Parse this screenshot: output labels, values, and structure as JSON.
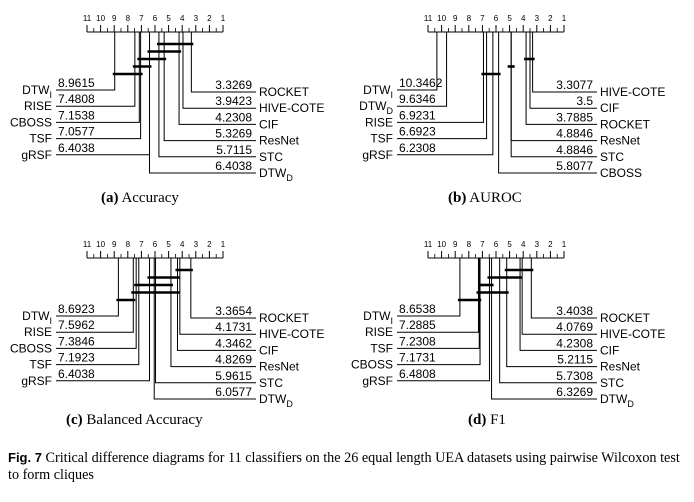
{
  "panels": [
    {
      "letter": "(a)",
      "metric": "Accuracy",
      "scale": [
        "11",
        "10",
        "9",
        "8",
        "7",
        "6",
        "5",
        "4",
        "3",
        "2",
        "1"
      ],
      "left": [
        {
          "name": "DTW",
          "sub": "I",
          "rank": "8.9615"
        },
        {
          "name": "RISE",
          "sub": "",
          "rank": "7.4808"
        },
        {
          "name": "CBOSS",
          "sub": "",
          "rank": "7.1538"
        },
        {
          "name": "TSF",
          "sub": "",
          "rank": "7.0577"
        },
        {
          "name": "gRSF",
          "sub": "",
          "rank": "6.4038"
        }
      ],
      "right": [
        {
          "name": "ROCKET",
          "sub": "",
          "rank": "3.3269"
        },
        {
          "name": "HIVE-COTE",
          "sub": "",
          "rank": "3.9423"
        },
        {
          "name": "CIF",
          "sub": "",
          "rank": "4.2308"
        },
        {
          "name": "ResNet",
          "sub": "",
          "rank": "5.3269"
        },
        {
          "name": "STC",
          "sub": "",
          "rank": "5.7115"
        },
        {
          "name": "DTW",
          "sub": "D",
          "rank": "6.4038"
        }
      ],
      "cliques": [
        [
          8.9615,
          7.0577
        ],
        [
          7.4808,
          6.4038
        ],
        [
          7.1538,
          5.3269
        ],
        [
          6.4038,
          4.2308
        ],
        [
          5.7115,
          3.3269
        ]
      ]
    },
    {
      "letter": "(b)",
      "metric": "AUROC",
      "scale": [
        "11",
        "10",
        "9",
        "8",
        "7",
        "6",
        "5",
        "4",
        "3",
        "2",
        "1"
      ],
      "left": [
        {
          "name": "DTW",
          "sub": "I",
          "rank": "10.3462"
        },
        {
          "name": "DTW",
          "sub": "D",
          "rank": "9.6346"
        },
        {
          "name": "RISE",
          "sub": "",
          "rank": "6.9231"
        },
        {
          "name": "TSF",
          "sub": "",
          "rank": "6.6923"
        },
        {
          "name": "gRSF",
          "sub": "",
          "rank": "6.2308"
        }
      ],
      "right": [
        {
          "name": "HIVE-COTE",
          "sub": "",
          "rank": "3.3077"
        },
        {
          "name": "CIF",
          "sub": "",
          "rank": "3.5"
        },
        {
          "name": "ROCKET",
          "sub": "",
          "rank": "3.7885"
        },
        {
          "name": "ResNet",
          "sub": "",
          "rank": "4.8846"
        },
        {
          "name": "STC",
          "sub": "",
          "rank": "4.8846"
        },
        {
          "name": "CBOSS",
          "sub": "",
          "rank": "5.8077"
        }
      ],
      "cliques": [
        [
          6.9231,
          5.8077
        ],
        [
          4.8846,
          4.8846
        ],
        [
          3.7885,
          3.3077
        ]
      ]
    },
    {
      "letter": "(c)",
      "metric": "Balanced Accuracy",
      "scale": [
        "11",
        "10",
        "9",
        "8",
        "7",
        "6",
        "5",
        "4",
        "3",
        "2",
        "1"
      ],
      "left": [
        {
          "name": "DTW",
          "sub": "I",
          "rank": "8.6923"
        },
        {
          "name": "RISE",
          "sub": "",
          "rank": "7.5962"
        },
        {
          "name": "CBOSS",
          "sub": "",
          "rank": "7.3846"
        },
        {
          "name": "TSF",
          "sub": "",
          "rank": "7.1923"
        },
        {
          "name": "gRSF",
          "sub": "",
          "rank": "6.4038"
        }
      ],
      "right": [
        {
          "name": "ROCKET",
          "sub": "",
          "rank": "3.3654"
        },
        {
          "name": "HIVE-COTE",
          "sub": "",
          "rank": "4.1731"
        },
        {
          "name": "CIF",
          "sub": "",
          "rank": "4.3462"
        },
        {
          "name": "ResNet",
          "sub": "",
          "rank": "4.8269"
        },
        {
          "name": "STC",
          "sub": "",
          "rank": "5.9615"
        },
        {
          "name": "DTW",
          "sub": "D",
          "rank": "6.0577"
        }
      ],
      "cliques": [
        [
          8.6923,
          7.5962
        ],
        [
          7.5962,
          4.3462
        ],
        [
          7.3846,
          4.8269
        ],
        [
          6.4038,
          4.3462
        ],
        [
          4.3462,
          3.3654
        ]
      ]
    },
    {
      "letter": "(d)",
      "metric": "F1",
      "scale": [
        "11",
        "10",
        "9",
        "8",
        "7",
        "6",
        "5",
        "4",
        "3",
        "2",
        "1"
      ],
      "left": [
        {
          "name": "DTW",
          "sub": "I",
          "rank": "8.6538"
        },
        {
          "name": "RISE",
          "sub": "",
          "rank": "7.2885"
        },
        {
          "name": "TSF",
          "sub": "",
          "rank": "7.2308"
        },
        {
          "name": "CBOSS",
          "sub": "",
          "rank": "7.1731"
        },
        {
          "name": "gRSF",
          "sub": "",
          "rank": "6.4808"
        }
      ],
      "right": [
        {
          "name": "ROCKET",
          "sub": "",
          "rank": "3.4038"
        },
        {
          "name": "HIVE-COTE",
          "sub": "",
          "rank": "4.0769"
        },
        {
          "name": "CIF",
          "sub": "",
          "rank": "4.2308"
        },
        {
          "name": "ResNet",
          "sub": "",
          "rank": "5.2115"
        },
        {
          "name": "STC",
          "sub": "",
          "rank": "5.7308"
        },
        {
          "name": "DTW",
          "sub": "D",
          "rank": "6.3269"
        }
      ],
      "cliques": [
        [
          8.6538,
          7.2308
        ],
        [
          7.2885,
          5.2115
        ],
        [
          7.1731,
          6.3269
        ],
        [
          6.4808,
          4.2308
        ],
        [
          5.2115,
          3.4038
        ]
      ]
    }
  ],
  "figure_caption": {
    "label": "Fig. 7",
    "text": "Critical difference diagrams for 11 classifiers on the 26 equal length UEA datasets using pairwise Wilcoxon test to form cliques"
  }
}
